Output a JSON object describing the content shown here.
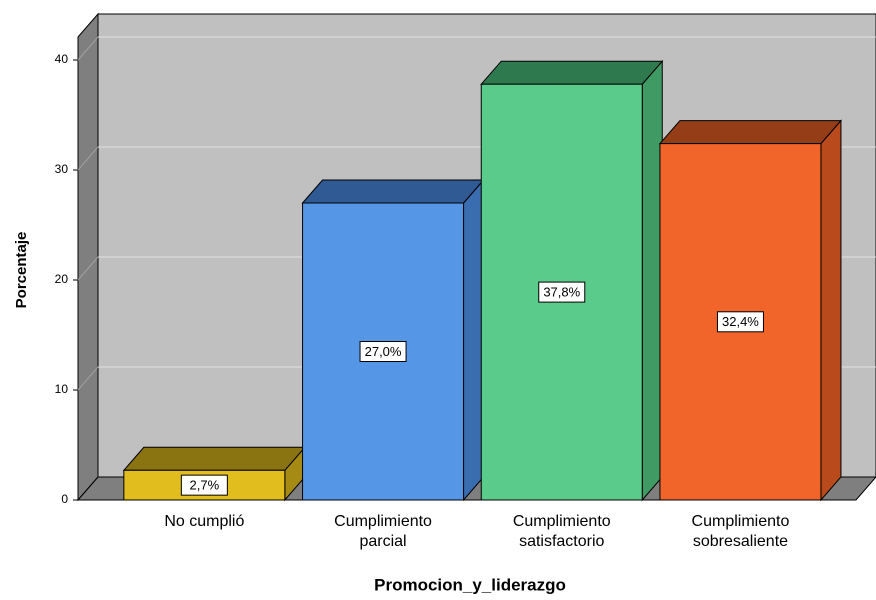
{
  "chart_data": {
    "type": "bar3d",
    "categories": [
      "No cumplió",
      "Cumplimiento\nparcial",
      "Cumplimiento\nsatisfactorio",
      "Cumplimiento\nsobresaliente"
    ],
    "values": [
      2.7,
      27.0,
      37.8,
      32.4
    ],
    "value_labels": [
      "2,7%",
      "27,0%",
      "37,8%",
      "32,4%"
    ],
    "colors": [
      "#e1bd1e",
      "#5596e6",
      "#5bcb8c",
      "#f1652b"
    ],
    "top_colors": [
      "#8a7311",
      "#2f5a94",
      "#2e7a4e",
      "#943d17"
    ],
    "side_colors": [
      "#a58a14",
      "#3a6db0",
      "#3f9a63",
      "#b84a1c"
    ],
    "x_label": "Promocion_y_liderazgo",
    "y_label": "Porcentaje",
    "ylim": [
      0,
      42
    ],
    "yticks": [
      0,
      10,
      20,
      30,
      40
    ],
    "grid": true
  }
}
